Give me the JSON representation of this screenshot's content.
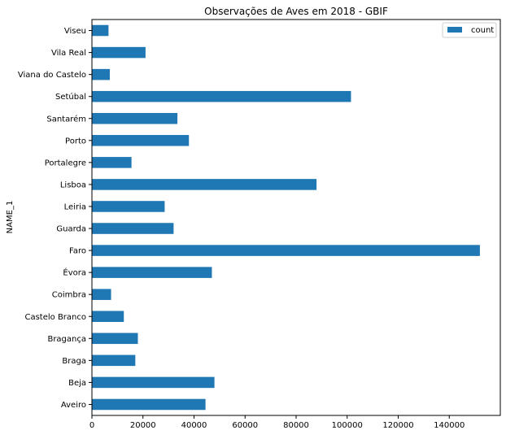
{
  "chart_data": {
    "type": "bar",
    "orientation": "horizontal",
    "title": "Observações de Aves em 2018 - GBIF",
    "xlabel": "",
    "ylabel": "NAME_1",
    "xlim": [
      0,
      160000
    ],
    "xticks": [
      0,
      20000,
      40000,
      60000,
      80000,
      100000,
      120000,
      140000
    ],
    "xtick_labels": [
      "0",
      "20000",
      "40000",
      "60000",
      "80000",
      "100000",
      "120000",
      "140000"
    ],
    "categories": [
      "Aveiro",
      "Beja",
      "Braga",
      "Bragança",
      "Castelo Branco",
      "Coimbra",
      "Évora",
      "Faro",
      "Guarda",
      "Leiria",
      "Lisboa",
      "Portalegre",
      "Porto",
      "Santarém",
      "Setúbal",
      "Viana do Castelo",
      "Vila Real",
      "Viseu"
    ],
    "series": [
      {
        "name": "count",
        "color": "#1f77b4",
        "values": [
          44500,
          48000,
          17000,
          18000,
          12500,
          7500,
          47000,
          152000,
          32000,
          28500,
          88000,
          15500,
          38000,
          33500,
          101500,
          7000,
          21000,
          6500
        ]
      }
    ],
    "legend": {
      "position": "top-right",
      "entries": [
        "count"
      ]
    },
    "grid": false
  }
}
